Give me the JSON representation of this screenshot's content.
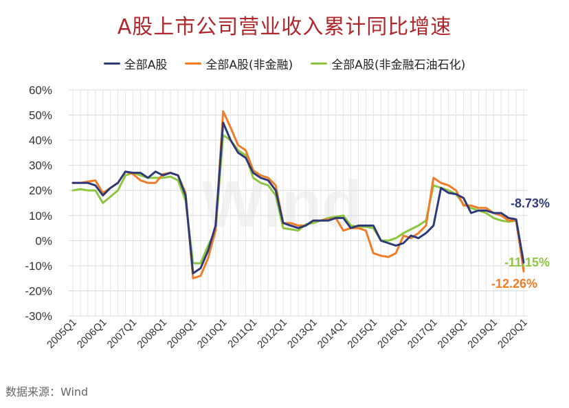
{
  "chart_data": {
    "type": "line",
    "title": "A股上市公司营业收入累计同比增速",
    "x_tick_labels": [
      "2005Q1",
      "2006Q1",
      "2007Q1",
      "2008Q1",
      "2009Q1",
      "2010Q1",
      "2011Q1",
      "2012Q1",
      "2013Q1",
      "2014Q1",
      "2015Q1",
      "2016Q1",
      "2017Q1",
      "2018Q1",
      "2019Q1",
      "2020Q1"
    ],
    "y_tick_labels": [
      "60%",
      "50%",
      "40%",
      "30%",
      "20%",
      "10%",
      "0%",
      "-10%",
      "-20%",
      "-30%"
    ],
    "ylim": [
      -30,
      60
    ],
    "grid": true,
    "legend_position": "top",
    "series": [
      {
        "name": "全部A股",
        "color": "#2e3a78",
        "values": [
          23,
          23,
          23,
          22,
          18,
          21,
          23,
          27.5,
          27,
          27,
          25,
          27.5,
          26,
          27,
          26,
          18,
          -13,
          -11,
          -4,
          6,
          47,
          40,
          35,
          33,
          27,
          25,
          24,
          20,
          7,
          6,
          5,
          6,
          8,
          8,
          8,
          9,
          9,
          5,
          6,
          6,
          6,
          0,
          -1,
          -2,
          -1,
          2,
          1,
          3,
          6,
          21,
          19,
          18.5,
          17,
          11,
          12,
          12,
          11,
          11,
          9,
          8.5,
          -8.73
        ],
        "end_label": "-8.73%"
      },
      {
        "name": "全部A股(非金融)",
        "color": "#f07c28",
        "values": [
          23,
          23,
          23.5,
          24,
          19,
          21,
          23,
          27.5,
          26.5,
          24,
          23,
          23,
          26.5,
          27,
          26,
          19,
          -15,
          -14,
          -7,
          4,
          51.5,
          45,
          38,
          36,
          28,
          26,
          25,
          22,
          7,
          7,
          6,
          6,
          8,
          8,
          8.5,
          9,
          4,
          5,
          5,
          4,
          -5,
          -6,
          -6.5,
          -5,
          2,
          1,
          3,
          6,
          25,
          23,
          22,
          20,
          14,
          14,
          13,
          13,
          11,
          10,
          8,
          8,
          -12.26
        ],
        "end_label": "-12.26%"
      },
      {
        "name": "全部A股(非金融石油石化)",
        "color": "#8cc63f",
        "values": [
          20,
          20.5,
          20,
          20,
          15,
          17.5,
          20,
          26,
          27,
          26,
          25,
          25,
          25,
          25.5,
          24,
          16,
          -9,
          -9,
          -2,
          4,
          42,
          40,
          36,
          34,
          25,
          23,
          22,
          18,
          5,
          4.5,
          4,
          6.5,
          7,
          8,
          9,
          9.5,
          10,
          6,
          5.5,
          5.5,
          5,
          0,
          0,
          1,
          3,
          4.5,
          6,
          8,
          22,
          21,
          20,
          18.5,
          14.5,
          13,
          12,
          11,
          9,
          8,
          7.5,
          8,
          -11.15
        ],
        "end_label": "-11.15%"
      }
    ]
  },
  "legend": {
    "items": [
      "全部A股",
      "全部A股(非金融)",
      "全部A股(非金融石油石化)"
    ]
  },
  "watermark": "Wind",
  "source": "数据来源：Wind"
}
